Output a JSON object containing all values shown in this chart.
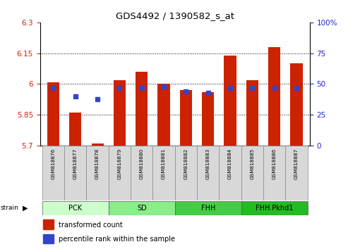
{
  "title": "GDS4492 / 1390582_s_at",
  "samples": [
    "GSM818876",
    "GSM818877",
    "GSM818878",
    "GSM818879",
    "GSM818880",
    "GSM818881",
    "GSM818882",
    "GSM818883",
    "GSM818884",
    "GSM818885",
    "GSM818886",
    "GSM818887"
  ],
  "red_values": [
    6.01,
    5.86,
    5.71,
    6.02,
    6.06,
    6.0,
    5.97,
    5.96,
    6.14,
    6.02,
    6.18,
    6.1
  ],
  "blue_values_pct": [
    47,
    40,
    38,
    47,
    47,
    48,
    44,
    43,
    47,
    47,
    47,
    47
  ],
  "y_min": 5.7,
  "y_max": 6.3,
  "y_ticks_red": [
    5.7,
    5.85,
    6.0,
    6.15,
    6.3
  ],
  "y_ticks_blue": [
    0,
    25,
    50,
    75,
    100
  ],
  "groups": [
    {
      "label": "PCK",
      "start": 0,
      "end": 3,
      "color": "#ccffcc"
    },
    {
      "label": "SD",
      "start": 3,
      "end": 6,
      "color": "#88ee88"
    },
    {
      "label": "FHH",
      "start": 6,
      "end": 9,
      "color": "#44cc44"
    },
    {
      "label": "FHH.Pkhd1",
      "start": 9,
      "end": 12,
      "color": "#22bb22"
    }
  ],
  "bar_bottom": 5.7,
  "bar_color_red": "#cc2200",
  "bar_color_blue": "#3344cc",
  "axis_color_red": "#cc2200",
  "axis_color_blue": "#2222cc",
  "tick_label_bg": "#d8d8d8",
  "legend_red_label": "transformed count",
  "legend_blue_label": "percentile rank within the sample",
  "grid_yticks": [
    5.85,
    6.0,
    6.15
  ]
}
